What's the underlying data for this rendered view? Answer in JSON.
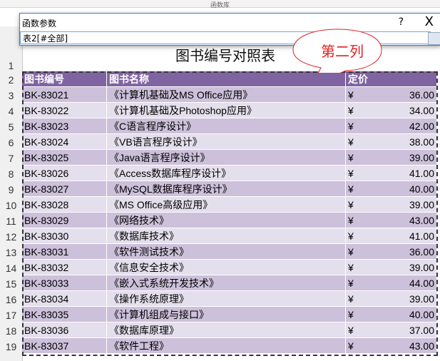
{
  "dialog": {
    "title": "函数参数",
    "help": "?",
    "close": "X",
    "input_value": "表2[#全部]"
  },
  "ribbon_label": "函数库",
  "sheet": {
    "title": "图书编号对照表",
    "headers": [
      "图书编号",
      "图书名称",
      "定价"
    ],
    "row_numbers": [
      "1",
      "2",
      "3",
      "4",
      "5",
      "6",
      "7",
      "8",
      "9",
      "10",
      "11",
      "12",
      "13",
      "14",
      "15",
      "16",
      "17",
      "18",
      "19"
    ],
    "rows": [
      [
        "BK-83021",
        "《计算机基础及MS Office应用》",
        "¥",
        "36.00"
      ],
      [
        "BK-83022",
        "《计算机基础及Photoshop应用》",
        "¥",
        "34.00"
      ],
      [
        "BK-83023",
        "《C语言程序设计》",
        "¥",
        "42.00"
      ],
      [
        "BK-83024",
        "《VB语言程序设计》",
        "¥",
        "38.00"
      ],
      [
        "BK-83025",
        "《Java语言程序设计》",
        "¥",
        "39.00"
      ],
      [
        "BK-83026",
        "《Access数据库程序设计》",
        "¥",
        "41.00"
      ],
      [
        "BK-83027",
        "《MySQL数据库程序设计》",
        "¥",
        "40.00"
      ],
      [
        "BK-83028",
        "《MS Office高级应用》",
        "¥",
        "39.00"
      ],
      [
        "BK-83029",
        "《网络技术》",
        "¥",
        "43.00"
      ],
      [
        "BK-83030",
        "《数据库技术》",
        "¥",
        "41.00"
      ],
      [
        "BK-83031",
        "《软件测试技术》",
        "¥",
        "36.00"
      ],
      [
        "BK-83032",
        "《信息安全技术》",
        "¥",
        "39.00"
      ],
      [
        "BK-83033",
        "《嵌入式系统开发技术》",
        "¥",
        "44.00"
      ],
      [
        "BK-83034",
        "《操作系统原理》",
        "¥",
        "39.00"
      ],
      [
        "BK-83035",
        "《计算机组成与接口》",
        "¥",
        "40.00"
      ],
      [
        "BK-83036",
        "《数据库原理》",
        "¥",
        "37.00"
      ],
      [
        "BK-83037",
        "《软件工程》",
        "¥",
        "43.00"
      ]
    ]
  },
  "callout": {
    "text": "第二列",
    "color": "#e02020"
  },
  "colors": {
    "header": "#8064a2",
    "row_dark": "#ccc0da",
    "row_light": "#e4dfec"
  }
}
